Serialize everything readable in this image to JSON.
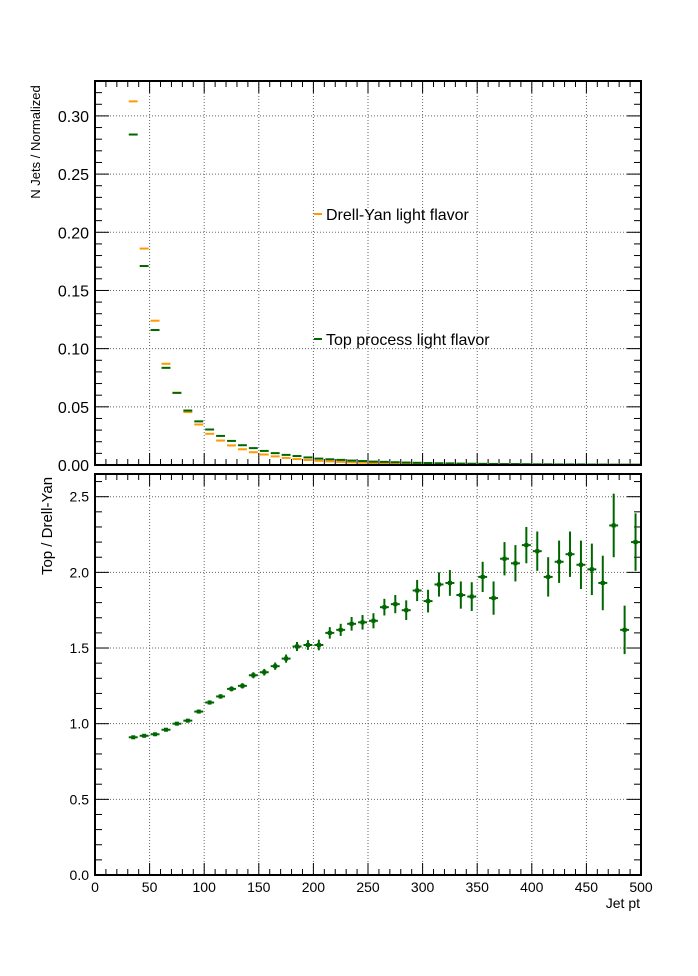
{
  "chart_data": [
    {
      "type": "step",
      "ylabel": "N Jets / Normalized",
      "ylim": [
        0,
        0.33
      ],
      "xlim": [
        0,
        500
      ],
      "yticks": [
        "0.00",
        "0.05",
        "0.10",
        "0.15",
        "0.20",
        "0.25",
        "0.30"
      ],
      "grid": true,
      "bin_width": 10,
      "x": [
        35,
        45,
        55,
        65,
        75,
        85,
        95,
        105,
        115,
        125,
        135,
        145,
        155,
        165,
        175,
        185,
        195,
        205,
        215,
        225,
        235,
        245,
        255,
        265,
        275,
        285,
        295,
        305,
        315,
        325,
        335,
        345,
        355,
        365,
        375,
        385,
        395,
        405,
        415,
        425,
        435,
        445,
        455,
        465,
        475,
        485,
        495
      ],
      "series": [
        {
          "name": "Drell-Yan light flavor",
          "color": "#ff9900",
          "values": [
            0.3125,
            0.186,
            0.124,
            0.087,
            0.062,
            0.0455,
            0.0348,
            0.0268,
            0.021,
            0.0168,
            0.0135,
            0.011,
            0.009,
            0.0074,
            0.0061,
            0.0051,
            0.0043,
            0.0036,
            0.0031,
            0.0027,
            0.0023,
            0.002,
            0.0017,
            0.0015,
            0.0013,
            0.0012,
            0.001,
            0.0009,
            0.0008,
            0.0007,
            0.0006,
            0.0006,
            0.0005,
            0.0005,
            0.0004,
            0.0004,
            0.0003,
            0.0003,
            0.0003,
            0.0003,
            0.0002,
            0.0002,
            0.0002,
            0.0002,
            0.0002,
            0.0002,
            0.0001
          ]
        },
        {
          "name": "Top process light flavor",
          "color": "#006600",
          "values": [
            0.284,
            0.171,
            0.116,
            0.0835,
            0.062,
            0.0468,
            0.0375,
            0.0305,
            0.025,
            0.0207,
            0.017,
            0.0145,
            0.0121,
            0.0102,
            0.0087,
            0.0077,
            0.0065,
            0.0055,
            0.0049,
            0.0044,
            0.0038,
            0.0034,
            0.0029,
            0.0027,
            0.0024,
            0.0021,
            0.0019,
            0.0017,
            0.0015,
            0.0014,
            0.0012,
            0.0011,
            0.001,
            0.0009,
            0.0008,
            0.0008,
            0.0007,
            0.0006,
            0.0006,
            0.0005,
            0.0005,
            0.0005,
            0.0004,
            0.0004,
            0.0003,
            0.0003,
            0.0003
          ]
        }
      ],
      "legend": "inside, right of center"
    },
    {
      "type": "scatter",
      "ylabel": "Top / Drell-Yan",
      "xlabel": "Jet pt",
      "ylim": [
        0,
        2.65
      ],
      "xlim": [
        0,
        500
      ],
      "yticks": [
        "0.0",
        "0.5",
        "1.0",
        "1.5",
        "2.0",
        "2.5"
      ],
      "xticks": [
        "0",
        "50",
        "100",
        "150",
        "200",
        "250",
        "300",
        "350",
        "400",
        "450",
        "500"
      ],
      "grid": true,
      "bin_width": 10,
      "series": [
        {
          "name": "",
          "color": "#006600",
          "x": [
            35,
            45,
            55,
            65,
            75,
            85,
            95,
            105,
            115,
            125,
            135,
            145,
            155,
            165,
            175,
            185,
            195,
            205,
            215,
            225,
            235,
            245,
            255,
            265,
            275,
            285,
            295,
            305,
            315,
            325,
            335,
            345,
            355,
            365,
            375,
            385,
            395,
            405,
            415,
            425,
            435,
            445,
            455,
            465,
            475,
            485,
            495
          ],
          "values": [
            0.91,
            0.92,
            0.93,
            0.96,
            1.0,
            1.02,
            1.08,
            1.14,
            1.18,
            1.23,
            1.25,
            1.32,
            1.34,
            1.38,
            1.43,
            1.51,
            1.52,
            1.52,
            1.6,
            1.62,
            1.66,
            1.67,
            1.68,
            1.77,
            1.79,
            1.75,
            1.88,
            1.81,
            1.92,
            1.93,
            1.85,
            1.84,
            1.97,
            1.83,
            2.09,
            2.06,
            2.18,
            2.14,
            1.97,
            2.07,
            2.12,
            2.05,
            2.02,
            1.93,
            2.31,
            1.62,
            2.2
          ],
          "errors": [
            0.005,
            0.006,
            0.007,
            0.008,
            0.008,
            0.01,
            0.012,
            0.014,
            0.015,
            0.017,
            0.018,
            0.02,
            0.022,
            0.024,
            0.027,
            0.03,
            0.032,
            0.035,
            0.038,
            0.04,
            0.045,
            0.048,
            0.05,
            0.055,
            0.06,
            0.065,
            0.07,
            0.075,
            0.08,
            0.085,
            0.09,
            0.095,
            0.1,
            0.11,
            0.11,
            0.12,
            0.12,
            0.13,
            0.13,
            0.14,
            0.15,
            0.16,
            0.17,
            0.18,
            0.21,
            0.16,
            0.19
          ]
        }
      ]
    }
  ]
}
